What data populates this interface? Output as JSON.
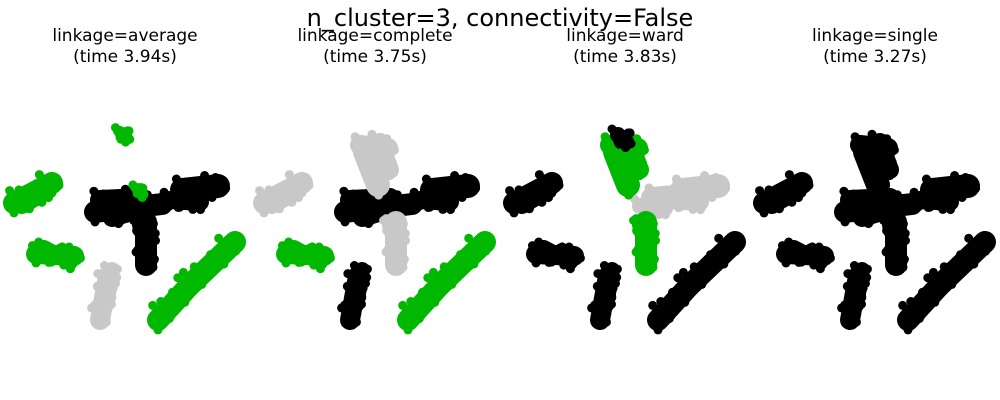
{
  "figure": {
    "suptitle": "n_cluster=3, connectivity=False"
  },
  "palette": {
    "green": "#00b800",
    "black": "#000000",
    "grey": "#c8c8c8"
  },
  "chart_data": [
    {
      "type": "scatter",
      "title_line1": "linkage=average",
      "title_line2": "(time 3.94s)",
      "axes_visible": false,
      "grid": false,
      "clusters": [
        {
          "color": "green",
          "regions": [
            "left-blob",
            "left-bar",
            "right-diagonal",
            "top-arm-sprinkle"
          ]
        },
        {
          "color": "black",
          "regions": [
            "center-cross",
            "right-arm",
            "center-vertical"
          ]
        },
        {
          "color": "grey",
          "regions": [
            "lower-center-stripe"
          ]
        }
      ]
    },
    {
      "type": "scatter",
      "title_line1": "linkage=complete",
      "title_line2": "(time 3.75s)",
      "axes_visible": false,
      "grid": false,
      "clusters": [
        {
          "color": "grey",
          "regions": [
            "left-blob",
            "top-arm",
            "center-vertical"
          ]
        },
        {
          "color": "black",
          "regions": [
            "center-cross",
            "right-arm",
            "lower-center-stripe"
          ]
        },
        {
          "color": "green",
          "regions": [
            "left-bar",
            "right-diagonal"
          ]
        }
      ]
    },
    {
      "type": "scatter",
      "title_line1": "linkage=ward",
      "title_line2": "(time 3.83s)",
      "axes_visible": false,
      "grid": false,
      "clusters": [
        {
          "color": "black",
          "regions": [
            "left-blob",
            "left-bar",
            "lower-center-stripe",
            "right-diagonal",
            "top-arm-tip"
          ]
        },
        {
          "color": "green",
          "regions": [
            "top-arm",
            "center-vertical"
          ]
        },
        {
          "color": "grey",
          "regions": [
            "right-arm",
            "center-cross-right"
          ]
        }
      ]
    },
    {
      "type": "scatter",
      "title_line1": "linkage=single",
      "title_line2": "(time 3.27s)",
      "axes_visible": false,
      "grid": false,
      "clusters": [
        {
          "color": "black",
          "regions": [
            "left-blob",
            "left-bar",
            "center-cross",
            "top-arm",
            "right-arm",
            "center-vertical",
            "lower-center-stripe",
            "right-diagonal"
          ]
        }
      ]
    }
  ]
}
